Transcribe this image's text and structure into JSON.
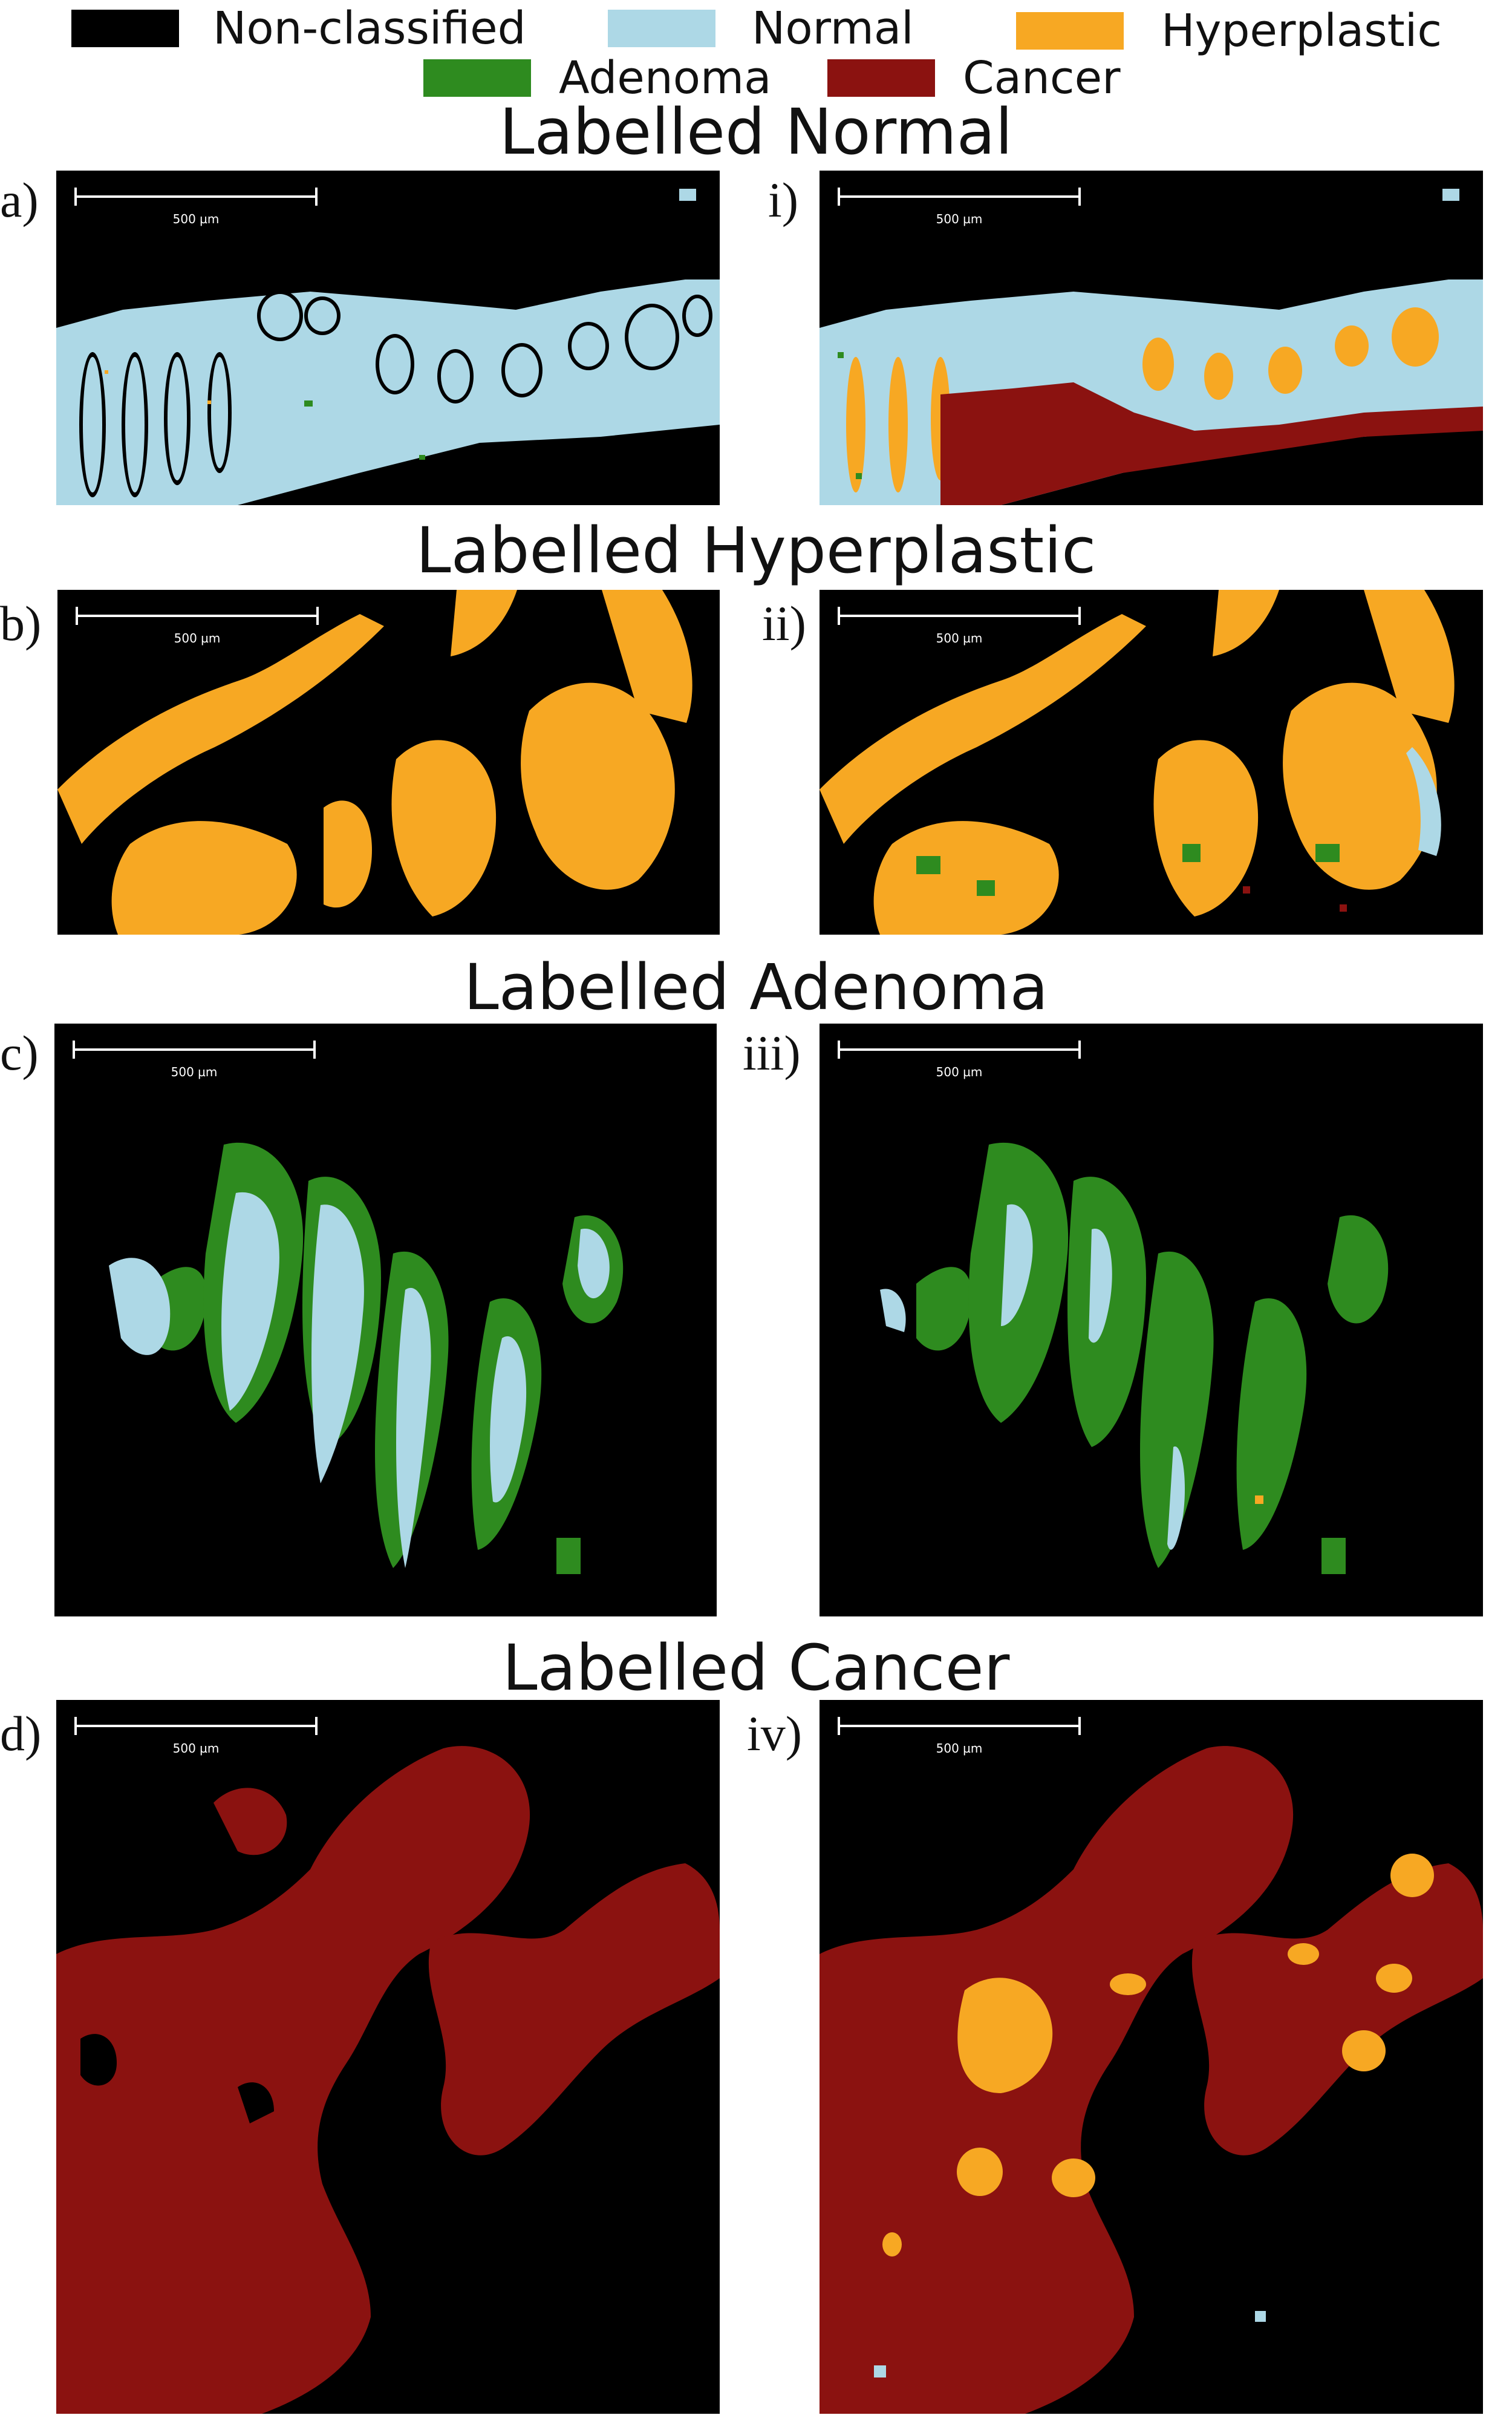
{
  "legend": [
    {
      "label": "Non-classified",
      "color": "#000000"
    },
    {
      "label": "Normal",
      "color": "#add8e6"
    },
    {
      "label": "Hyperplastic",
      "color": "#f7a823"
    },
    {
      "label": "Adenoma",
      "color": "#2e8b1f"
    },
    {
      "label": "Cancer",
      "color": "#8b1210"
    }
  ],
  "rows": [
    {
      "title": "Labelled Normal",
      "left_label": "a)",
      "right_label": "i)"
    },
    {
      "title": "Labelled Hyperplastic",
      "left_label": "b)",
      "right_label": "ii)"
    },
    {
      "title": "Labelled Adenoma",
      "left_label": "c)",
      "right_label": "iii)"
    },
    {
      "title": "Labelled Cancer",
      "left_label": "d)",
      "right_label": "iv)"
    }
  ],
  "scale_bar_label": "500 µm"
}
